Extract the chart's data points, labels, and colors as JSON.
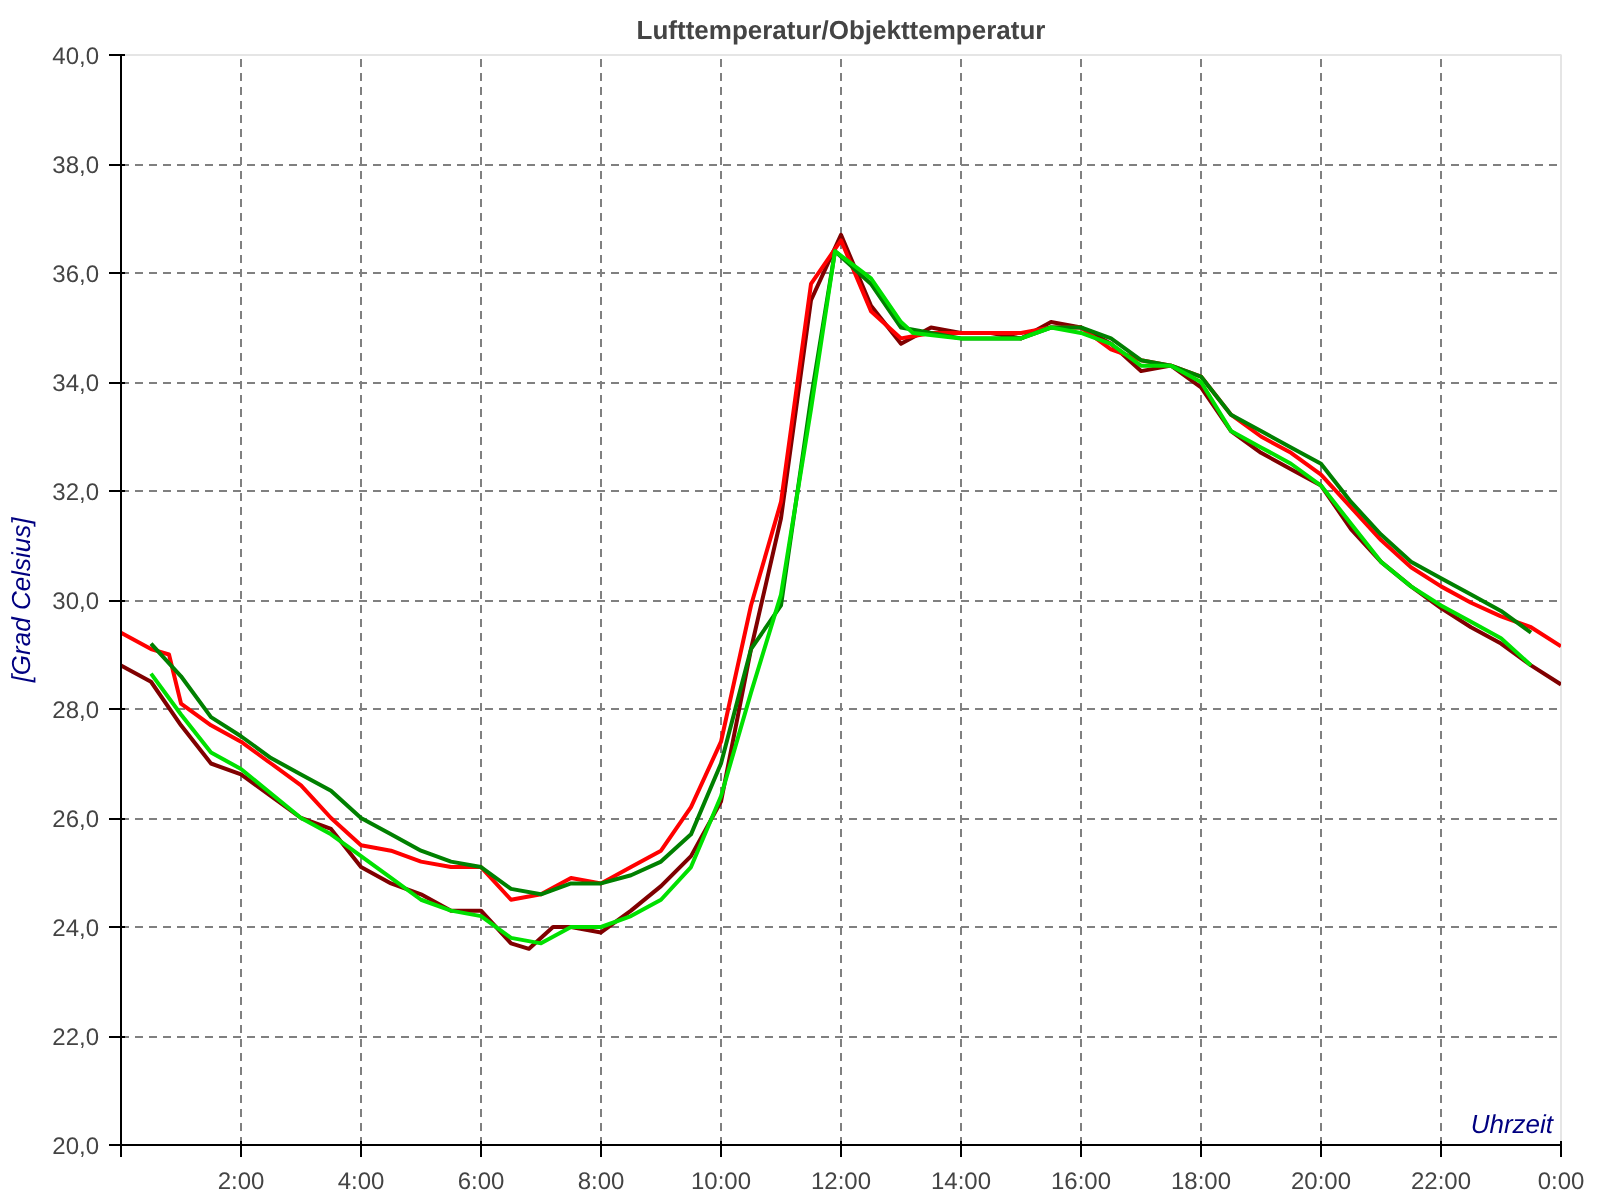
{
  "chart_data": {
    "type": "line",
    "title": "Lufttemperatur/Objekttemperatur",
    "xlabel": "Uhrzeit",
    "ylabel": "[Grad Celsius]",
    "xlim": [
      0,
      24
    ],
    "ylim": [
      20,
      40
    ],
    "xticks": [
      {
        "value": 0,
        "label": null
      },
      {
        "value": 2,
        "label": "2:00"
      },
      {
        "value": 4,
        "label": "4:00"
      },
      {
        "value": 6,
        "label": "6:00"
      },
      {
        "value": 8,
        "label": "8:00"
      },
      {
        "value": 10,
        "label": "10:00"
      },
      {
        "value": 12,
        "label": "12:00"
      },
      {
        "value": 14,
        "label": "14:00"
      },
      {
        "value": 16,
        "label": "16:00"
      },
      {
        "value": 18,
        "label": "18:00"
      },
      {
        "value": 20,
        "label": "20:00"
      },
      {
        "value": 22,
        "label": "22:00"
      },
      {
        "value": 24,
        "label": "0:00"
      }
    ],
    "yticks": [
      {
        "value": 20,
        "label": "20,0"
      },
      {
        "value": 22,
        "label": "22,0"
      },
      {
        "value": 24,
        "label": "24,0"
      },
      {
        "value": 26,
        "label": "26,0"
      },
      {
        "value": 28,
        "label": "28,0"
      },
      {
        "value": 30,
        "label": "30,0"
      },
      {
        "value": 32,
        "label": "32,0"
      },
      {
        "value": 34,
        "label": "34,0"
      },
      {
        "value": 36,
        "label": "36,0"
      },
      {
        "value": 38,
        "label": "38,0"
      },
      {
        "value": 40,
        "label": "40,0"
      }
    ],
    "grid": true,
    "marker": "none",
    "line_style": "solid",
    "series": [
      {
        "color": "#800000",
        "x": [
          0,
          0.5,
          1,
          1.5,
          2,
          2.5,
          3,
          3.5,
          4,
          4.5,
          5,
          5.5,
          6,
          6.5,
          6.8,
          7.2,
          7.5,
          8,
          8.5,
          9,
          9.5,
          10,
          10.5,
          11,
          11.5,
          12,
          12.5,
          13,
          13.5,
          14,
          14.5,
          15,
          15.5,
          16,
          16.5,
          17,
          17.5,
          18,
          18.5,
          19,
          19.5,
          20,
          20.5,
          21,
          21.5,
          22,
          22.5,
          23,
          23.5,
          24
        ],
        "values": [
          28.8,
          28.5,
          27.7,
          27.0,
          26.8,
          26.4,
          26.0,
          25.8,
          25.1,
          24.8,
          24.6,
          24.3,
          24.3,
          23.7,
          23.6,
          24.0,
          24.0,
          23.9,
          24.3,
          24.75,
          25.3,
          26.3,
          29.1,
          31.5,
          35.5,
          36.7,
          35.4,
          34.7,
          35.0,
          34.9,
          34.9,
          34.8,
          35.1,
          35.0,
          34.7,
          34.2,
          34.3,
          33.9,
          33.1,
          32.7,
          32.4,
          32.1,
          31.3,
          30.7,
          30.25,
          29.85,
          29.5,
          29.2,
          28.8,
          28.45
        ]
      },
      {
        "color": "#ff0000",
        "x": [
          0,
          0.5,
          0.8,
          1,
          1.5,
          2,
          2.5,
          3,
          3.5,
          4,
          4.5,
          5,
          5.5,
          6,
          6.5,
          7,
          7.5,
          8,
          8.5,
          9,
          9.5,
          10,
          10.5,
          11,
          11.5,
          12,
          12.5,
          13,
          13.5,
          14,
          14.5,
          15,
          15.5,
          16,
          16.5,
          17,
          17.5,
          18,
          18.5,
          19,
          19.5,
          20,
          20.5,
          21,
          21.5,
          22,
          22.5,
          23,
          23.5,
          24
        ],
        "values": [
          29.4,
          29.1,
          29.0,
          28.1,
          27.7,
          27.4,
          27.0,
          26.6,
          26.0,
          25.5,
          25.4,
          25.2,
          25.1,
          25.1,
          24.5,
          24.6,
          24.9,
          24.8,
          25.1,
          25.4,
          26.2,
          27.4,
          29.9,
          31.8,
          35.8,
          36.6,
          35.3,
          34.8,
          34.9,
          34.9,
          34.9,
          34.9,
          35.0,
          35.0,
          34.6,
          34.4,
          34.3,
          34.1,
          33.4,
          33.0,
          32.7,
          32.3,
          31.7,
          31.1,
          30.6,
          30.25,
          29.95,
          29.7,
          29.5,
          29.15
        ]
      },
      {
        "color": "#008000",
        "x": [
          0.5,
          1,
          1.5,
          2,
          2.5,
          3,
          3.5,
          4,
          4.5,
          5,
          5.5,
          6,
          6.5,
          7,
          7.5,
          8,
          8.5,
          9,
          9.5,
          10,
          10.5,
          11,
          11.5,
          11.9,
          12.5,
          13,
          13.5,
          14,
          15,
          15.5,
          16,
          16.5,
          17,
          17.5,
          18,
          18.5,
          19,
          19.5,
          20,
          20.5,
          21,
          21.5,
          22,
          22.5,
          23,
          23.5
        ],
        "values": [
          29.2,
          28.6,
          27.85,
          27.5,
          27.1,
          26.8,
          26.5,
          26.0,
          25.7,
          25.4,
          25.2,
          25.1,
          24.7,
          24.6,
          24.8,
          24.8,
          24.95,
          25.2,
          25.7,
          27.0,
          29.1,
          29.9,
          33.7,
          36.4,
          35.8,
          35.0,
          34.9,
          34.8,
          34.8,
          35.0,
          35.0,
          34.8,
          34.4,
          34.3,
          34.1,
          33.4,
          33.1,
          32.8,
          32.5,
          31.8,
          31.2,
          30.7,
          30.4,
          30.1,
          29.8,
          29.4
        ]
      },
      {
        "color": "#00e000",
        "x": [
          0.5,
          1,
          1.5,
          2,
          2.5,
          3,
          3.5,
          4,
          4.5,
          5,
          5.5,
          6,
          6.5,
          7,
          7.5,
          8,
          8.5,
          9,
          9.5,
          10,
          10.5,
          11,
          11.5,
          11.9,
          12.5,
          13,
          13.2,
          14,
          15,
          15.5,
          16,
          16.5,
          17,
          17.5,
          18,
          18.5,
          19,
          19.5,
          20,
          20.5,
          21,
          21.5,
          22,
          22.5,
          23,
          23.5
        ],
        "values": [
          28.65,
          27.9,
          27.2,
          26.9,
          26.45,
          26.0,
          25.7,
          25.3,
          24.9,
          24.5,
          24.3,
          24.2,
          23.8,
          23.7,
          24.0,
          24.0,
          24.2,
          24.5,
          25.1,
          26.4,
          28.3,
          30.1,
          33.5,
          36.4,
          35.9,
          35.1,
          34.9,
          34.8,
          34.8,
          35.0,
          34.9,
          34.7,
          34.3,
          34.3,
          34.0,
          33.1,
          32.8,
          32.5,
          32.1,
          31.4,
          30.7,
          30.25,
          29.9,
          29.6,
          29.3,
          28.8
        ]
      }
    ]
  }
}
